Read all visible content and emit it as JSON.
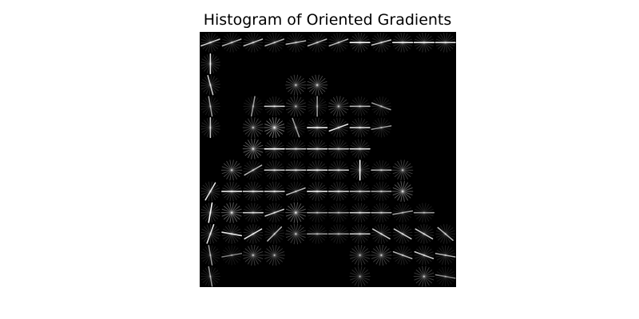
{
  "title": "Histogram of Oriented Gradients",
  "chart_data": {
    "type": "heatmap",
    "title": "Histogram of Oriented Gradients",
    "grid": false,
    "axes_visible": false,
    "cell_grid": [
      12,
      12
    ],
    "background": "#000000",
    "glyph_color": "#ffffff",
    "dominant_edges": [
      {
        "row": 0,
        "col": 0,
        "angle_deg": 20,
        "strength": 0.8
      },
      {
        "row": 0,
        "col": 1,
        "angle_deg": 20,
        "strength": 0.7
      },
      {
        "row": 0,
        "col": 2,
        "angle_deg": 20,
        "strength": 0.75
      },
      {
        "row": 0,
        "col": 3,
        "angle_deg": 20,
        "strength": 0.7
      },
      {
        "row": 0,
        "col": 4,
        "angle_deg": 10,
        "strength": 0.7
      },
      {
        "row": 0,
        "col": 5,
        "angle_deg": 20,
        "strength": 0.7
      },
      {
        "row": 0,
        "col": 6,
        "angle_deg": 20,
        "strength": 0.7
      },
      {
        "row": 0,
        "col": 7,
        "angle_deg": 0,
        "strength": 1.0
      },
      {
        "row": 0,
        "col": 8,
        "angle_deg": 15,
        "strength": 0.8
      },
      {
        "row": 0,
        "col": 9,
        "angle_deg": 0,
        "strength": 0.95
      },
      {
        "row": 0,
        "col": 10,
        "angle_deg": 0,
        "strength": 0.95
      },
      {
        "row": 0,
        "col": 11,
        "angle_deg": 0,
        "strength": 0.9
      },
      {
        "row": 1,
        "col": 0,
        "angle_deg": 90,
        "strength": 0.9
      },
      {
        "row": 2,
        "col": 0,
        "angle_deg": 105,
        "strength": 0.8
      },
      {
        "row": 3,
        "col": 0,
        "angle_deg": 100,
        "strength": 0.6
      },
      {
        "row": 3,
        "col": 2,
        "angle_deg": 80,
        "strength": 0.6
      },
      {
        "row": 3,
        "col": 3,
        "angle_deg": 0,
        "strength": 0.8
      },
      {
        "row": 3,
        "col": 5,
        "angle_deg": 90,
        "strength": 0.6
      },
      {
        "row": 3,
        "col": 7,
        "angle_deg": 0,
        "strength": 0.7
      },
      {
        "row": 3,
        "col": 8,
        "angle_deg": -20,
        "strength": 0.6
      },
      {
        "row": 4,
        "col": 0,
        "angle_deg": 90,
        "strength": 0.8
      },
      {
        "row": 4,
        "col": 4,
        "angle_deg": 110,
        "strength": 0.6
      },
      {
        "row": 4,
        "col": 5,
        "angle_deg": 0,
        "strength": 1.0
      },
      {
        "row": 4,
        "col": 6,
        "angle_deg": 20,
        "strength": 0.9
      },
      {
        "row": 4,
        "col": 7,
        "angle_deg": 0,
        "strength": 0.9
      },
      {
        "row": 4,
        "col": 8,
        "angle_deg": 10,
        "strength": 0.6
      },
      {
        "row": 5,
        "col": 3,
        "angle_deg": 0,
        "strength": 1.0
      },
      {
        "row": 5,
        "col": 4,
        "angle_deg": 0,
        "strength": 0.8
      },
      {
        "row": 5,
        "col": 5,
        "angle_deg": 0,
        "strength": 0.9
      },
      {
        "row": 5,
        "col": 6,
        "angle_deg": 0,
        "strength": 0.8
      },
      {
        "row": 5,
        "col": 7,
        "angle_deg": 0,
        "strength": 0.9
      },
      {
        "row": 6,
        "col": 2,
        "angle_deg": 30,
        "strength": 0.7
      },
      {
        "row": 6,
        "col": 3,
        "angle_deg": 0,
        "strength": 0.8
      },
      {
        "row": 6,
        "col": 4,
        "angle_deg": 0,
        "strength": 0.8
      },
      {
        "row": 6,
        "col": 5,
        "angle_deg": 0,
        "strength": 0.9
      },
      {
        "row": 6,
        "col": 6,
        "angle_deg": 0,
        "strength": 0.8
      },
      {
        "row": 6,
        "col": 7,
        "angle_deg": 90,
        "strength": 1.0
      },
      {
        "row": 6,
        "col": 8,
        "angle_deg": 0,
        "strength": 0.7
      },
      {
        "row": 7,
        "col": 0,
        "angle_deg": 60,
        "strength": 0.9
      },
      {
        "row": 7,
        "col": 1,
        "angle_deg": 0,
        "strength": 1.0
      },
      {
        "row": 7,
        "col": 2,
        "angle_deg": 0,
        "strength": 0.9
      },
      {
        "row": 7,
        "col": 3,
        "angle_deg": 0,
        "strength": 0.9
      },
      {
        "row": 7,
        "col": 4,
        "angle_deg": 20,
        "strength": 0.7
      },
      {
        "row": 7,
        "col": 5,
        "angle_deg": 0,
        "strength": 1.0
      },
      {
        "row": 7,
        "col": 6,
        "angle_deg": 0,
        "strength": 0.9
      },
      {
        "row": 7,
        "col": 7,
        "angle_deg": 0,
        "strength": 0.8
      },
      {
        "row": 7,
        "col": 8,
        "angle_deg": 0,
        "strength": 0.7
      },
      {
        "row": 8,
        "col": 0,
        "angle_deg": 80,
        "strength": 1.0
      },
      {
        "row": 8,
        "col": 2,
        "angle_deg": 0,
        "strength": 0.8
      },
      {
        "row": 8,
        "col": 3,
        "angle_deg": 20,
        "strength": 0.8
      },
      {
        "row": 8,
        "col": 5,
        "angle_deg": 0,
        "strength": 0.6
      },
      {
        "row": 8,
        "col": 6,
        "angle_deg": 0,
        "strength": 0.6
      },
      {
        "row": 8,
        "col": 7,
        "angle_deg": 0,
        "strength": 0.8
      },
      {
        "row": 8,
        "col": 8,
        "angle_deg": 0,
        "strength": 0.7
      },
      {
        "row": 8,
        "col": 9,
        "angle_deg": 10,
        "strength": 0.6
      },
      {
        "row": 8,
        "col": 10,
        "angle_deg": 0,
        "strength": 0.6
      },
      {
        "row": 9,
        "col": 0,
        "angle_deg": 70,
        "strength": 0.9
      },
      {
        "row": 9,
        "col": 1,
        "angle_deg": -10,
        "strength": 0.9
      },
      {
        "row": 9,
        "col": 2,
        "angle_deg": 30,
        "strength": 0.9
      },
      {
        "row": 9,
        "col": 3,
        "angle_deg": 45,
        "strength": 0.7
      },
      {
        "row": 9,
        "col": 5,
        "angle_deg": 0,
        "strength": 0.6
      },
      {
        "row": 9,
        "col": 6,
        "angle_deg": 0,
        "strength": 0.6
      },
      {
        "row": 9,
        "col": 7,
        "angle_deg": 0,
        "strength": 0.8
      },
      {
        "row": 9,
        "col": 8,
        "angle_deg": -30,
        "strength": 0.8
      },
      {
        "row": 9,
        "col": 9,
        "angle_deg": -30,
        "strength": 0.8
      },
      {
        "row": 9,
        "col": 10,
        "angle_deg": -30,
        "strength": 0.8
      },
      {
        "row": 9,
        "col": 11,
        "angle_deg": -40,
        "strength": 0.7
      },
      {
        "row": 10,
        "col": 0,
        "angle_deg": 100,
        "strength": 0.6
      },
      {
        "row": 10,
        "col": 1,
        "angle_deg": 10,
        "strength": 0.5
      },
      {
        "row": 10,
        "col": 9,
        "angle_deg": -20,
        "strength": 0.7
      },
      {
        "row": 10,
        "col": 10,
        "angle_deg": -20,
        "strength": 0.8
      },
      {
        "row": 10,
        "col": 11,
        "angle_deg": -10,
        "strength": 0.7
      },
      {
        "row": 11,
        "col": 0,
        "angle_deg": 100,
        "strength": 0.6
      },
      {
        "row": 11,
        "col": 11,
        "angle_deg": -10,
        "strength": 0.5
      }
    ],
    "diffuse_cells": [
      {
        "row": 2,
        "col": 4,
        "strength": 0.35
      },
      {
        "row": 2,
        "col": 5,
        "strength": 0.4
      },
      {
        "row": 3,
        "col": 4,
        "strength": 0.3
      },
      {
        "row": 3,
        "col": 6,
        "strength": 0.35
      },
      {
        "row": 4,
        "col": 2,
        "strength": 0.35
      },
      {
        "row": 4,
        "col": 3,
        "strength": 0.6
      },
      {
        "row": 5,
        "col": 2,
        "strength": 0.5
      },
      {
        "row": 6,
        "col": 1,
        "strength": 0.4
      },
      {
        "row": 6,
        "col": 9,
        "strength": 0.35
      },
      {
        "row": 7,
        "col": 9,
        "strength": 0.5
      },
      {
        "row": 8,
        "col": 1,
        "strength": 0.5
      },
      {
        "row": 8,
        "col": 4,
        "strength": 0.5
      },
      {
        "row": 9,
        "col": 4,
        "strength": 0.35
      },
      {
        "row": 10,
        "col": 2,
        "strength": 0.35
      },
      {
        "row": 10,
        "col": 3,
        "strength": 0.3
      },
      {
        "row": 10,
        "col": 7,
        "strength": 0.3
      },
      {
        "row": 10,
        "col": 8,
        "strength": 0.35
      },
      {
        "row": 11,
        "col": 7,
        "strength": 0.25
      },
      {
        "row": 11,
        "col": 10,
        "strength": 0.35
      }
    ]
  }
}
